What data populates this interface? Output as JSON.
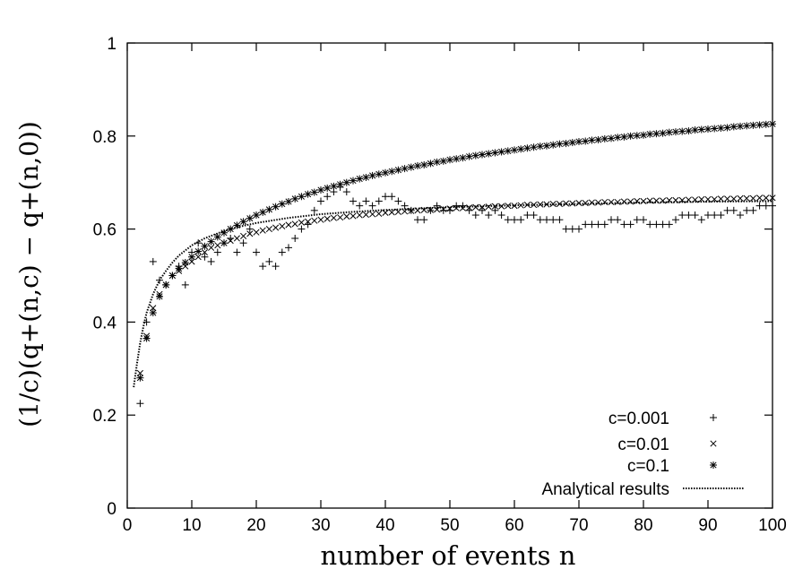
{
  "chart_data": {
    "type": "scatter",
    "title": "",
    "xlabel": "number of events n",
    "ylabel": "(1/c)(q+(n,c) − q+(n,0))",
    "xlim": [
      0,
      100
    ],
    "ylim": [
      0,
      1
    ],
    "x_ticks": [
      "0",
      "10",
      "20",
      "30",
      "40",
      "50",
      "60",
      "70",
      "80",
      "90",
      "100"
    ],
    "y_ticks": [
      "0",
      "0.2",
      "0.4",
      "0.6",
      "0.8",
      "1"
    ],
    "legend_position": "bottom-right",
    "grid": false,
    "series": [
      {
        "name": "c=0.001",
        "marker": "plus",
        "x": [
          2,
          3,
          4,
          5,
          6,
          7,
          8,
          9,
          10,
          11,
          12,
          13,
          14,
          15,
          16,
          17,
          18,
          19,
          20,
          21,
          22,
          23,
          24,
          25,
          26,
          27,
          28,
          29,
          30,
          31,
          32,
          33,
          34,
          35,
          36,
          37,
          38,
          39,
          40,
          41,
          42,
          43,
          44,
          45,
          46,
          47,
          48,
          49,
          50,
          51,
          52,
          53,
          54,
          55,
          56,
          57,
          58,
          59,
          60,
          61,
          62,
          63,
          64,
          65,
          66,
          67,
          68,
          69,
          70,
          71,
          72,
          73,
          74,
          75,
          76,
          77,
          78,
          79,
          80,
          81,
          82,
          83,
          84,
          85,
          86,
          87,
          88,
          89,
          90,
          91,
          92,
          93,
          94,
          95,
          96,
          97,
          98,
          99,
          100
        ],
        "y": [
          0.225,
          0.4,
          0.53,
          0.49,
          0.48,
          0.5,
          0.52,
          0.48,
          0.55,
          0.57,
          0.54,
          0.53,
          0.55,
          0.57,
          0.58,
          0.55,
          0.57,
          0.6,
          0.55,
          0.52,
          0.53,
          0.52,
          0.55,
          0.56,
          0.58,
          0.6,
          0.61,
          0.64,
          0.66,
          0.67,
          0.68,
          0.69,
          0.68,
          0.66,
          0.65,
          0.66,
          0.65,
          0.66,
          0.67,
          0.67,
          0.66,
          0.65,
          0.64,
          0.62,
          0.62,
          0.64,
          0.65,
          0.64,
          0.64,
          0.65,
          0.65,
          0.64,
          0.63,
          0.64,
          0.63,
          0.64,
          0.63,
          0.62,
          0.62,
          0.62,
          0.63,
          0.63,
          0.62,
          0.62,
          0.62,
          0.62,
          0.6,
          0.6,
          0.6,
          0.61,
          0.61,
          0.61,
          0.61,
          0.62,
          0.62,
          0.61,
          0.61,
          0.62,
          0.62,
          0.61,
          0.61,
          0.61,
          0.61,
          0.62,
          0.63,
          0.63,
          0.63,
          0.62,
          0.63,
          0.63,
          0.63,
          0.64,
          0.64,
          0.63,
          0.64,
          0.64,
          0.65,
          0.65,
          0.65
        ]
      },
      {
        "name": "c=0.01",
        "marker": "cross",
        "x": [
          2,
          3,
          4,
          5,
          6,
          7,
          8,
          9,
          10,
          11,
          12,
          13,
          14,
          15,
          16,
          17,
          18,
          19,
          20,
          21,
          22,
          23,
          24,
          25,
          26,
          27,
          28,
          29,
          30,
          31,
          32,
          33,
          34,
          35,
          36,
          37,
          38,
          39,
          40,
          41,
          42,
          43,
          44,
          45,
          46,
          47,
          48,
          49,
          50,
          51,
          52,
          53,
          54,
          55,
          56,
          57,
          58,
          59,
          60,
          61,
          62,
          63,
          64,
          65,
          66,
          67,
          68,
          69,
          70,
          71,
          72,
          73,
          74,
          75,
          76,
          77,
          78,
          79,
          80,
          81,
          82,
          83,
          84,
          85,
          86,
          87,
          88,
          89,
          90,
          91,
          92,
          93,
          94,
          95,
          96,
          97,
          98,
          99,
          100
        ],
        "y": [
          0.29,
          0.37,
          0.43,
          0.46,
          0.48,
          0.5,
          0.51,
          0.52,
          0.53,
          0.54,
          0.55,
          0.56,
          0.565,
          0.57,
          0.575,
          0.58,
          0.585,
          0.59,
          0.593,
          0.597,
          0.6,
          0.603,
          0.606,
          0.609,
          0.611,
          0.614,
          0.616,
          0.618,
          0.62,
          0.622,
          0.624,
          0.625,
          0.627,
          0.628,
          0.63,
          0.631,
          0.632,
          0.633,
          0.635,
          0.636,
          0.637,
          0.638,
          0.639,
          0.64,
          0.641,
          0.641,
          0.642,
          0.643,
          0.644,
          0.645,
          0.645,
          0.646,
          0.647,
          0.647,
          0.648,
          0.649,
          0.649,
          0.65,
          0.65,
          0.651,
          0.652,
          0.652,
          0.653,
          0.653,
          0.654,
          0.654,
          0.655,
          0.655,
          0.656,
          0.656,
          0.657,
          0.657,
          0.658,
          0.658,
          0.658,
          0.659,
          0.659,
          0.66,
          0.66,
          0.661,
          0.661,
          0.661,
          0.662,
          0.662,
          0.662,
          0.663,
          0.663,
          0.664,
          0.664,
          0.664,
          0.665,
          0.665,
          0.665,
          0.666,
          0.666,
          0.666,
          0.667,
          0.667,
          0.667
        ]
      },
      {
        "name": "c=0.1",
        "marker": "star",
        "x": [
          2,
          3,
          4,
          5,
          6,
          7,
          8,
          9,
          10,
          11,
          12,
          13,
          14,
          15,
          16,
          17,
          18,
          19,
          20,
          21,
          22,
          23,
          24,
          25,
          26,
          27,
          28,
          29,
          30,
          31,
          32,
          33,
          34,
          35,
          36,
          37,
          38,
          39,
          40,
          41,
          42,
          43,
          44,
          45,
          46,
          47,
          48,
          49,
          50,
          51,
          52,
          53,
          54,
          55,
          56,
          57,
          58,
          59,
          60,
          61,
          62,
          63,
          64,
          65,
          66,
          67,
          68,
          69,
          70,
          71,
          72,
          73,
          74,
          75,
          76,
          77,
          78,
          79,
          80,
          81,
          82,
          83,
          84,
          85,
          86,
          87,
          88,
          89,
          90,
          91,
          92,
          93,
          94,
          95,
          96,
          97,
          98,
          99,
          100
        ],
        "y": [
          0.28,
          0.365,
          0.42,
          0.455,
          0.48,
          0.5,
          0.515,
          0.528,
          0.54,
          0.552,
          0.563,
          0.573,
          0.583,
          0.592,
          0.6,
          0.608,
          0.616,
          0.623,
          0.63,
          0.636,
          0.642,
          0.648,
          0.654,
          0.659,
          0.665,
          0.67,
          0.675,
          0.679,
          0.684,
          0.688,
          0.692,
          0.696,
          0.7,
          0.704,
          0.708,
          0.711,
          0.715,
          0.718,
          0.721,
          0.724,
          0.727,
          0.73,
          0.733,
          0.736,
          0.738,
          0.741,
          0.744,
          0.746,
          0.749,
          0.751,
          0.753,
          0.756,
          0.758,
          0.76,
          0.762,
          0.764,
          0.766,
          0.768,
          0.77,
          0.772,
          0.774,
          0.776,
          0.778,
          0.779,
          0.781,
          0.783,
          0.784,
          0.786,
          0.788,
          0.789,
          0.791,
          0.792,
          0.794,
          0.795,
          0.797,
          0.798,
          0.8,
          0.801,
          0.802,
          0.804,
          0.805,
          0.806,
          0.808,
          0.809,
          0.81,
          0.811,
          0.813,
          0.814,
          0.815,
          0.816,
          0.817,
          0.818,
          0.82,
          0.821,
          0.822,
          0.823,
          0.824,
          0.825,
          0.826
        ]
      },
      {
        "name": "Analytical results",
        "marker": "dotted-line",
        "x": [
          1,
          1.5,
          2,
          2.5,
          3,
          4,
          5,
          6,
          7,
          8,
          10,
          12,
          15,
          18,
          20,
          25,
          30,
          35,
          40,
          50,
          60,
          70,
          80,
          90,
          100
        ],
        "y": [
          0.26,
          0.31,
          0.355,
          0.39,
          0.42,
          0.46,
          0.49,
          0.51,
          0.528,
          0.543,
          0.565,
          0.58,
          0.596,
          0.607,
          0.613,
          0.624,
          0.632,
          0.637,
          0.641,
          0.647,
          0.651,
          0.654,
          0.657,
          0.659,
          0.66
        ]
      }
    ]
  }
}
